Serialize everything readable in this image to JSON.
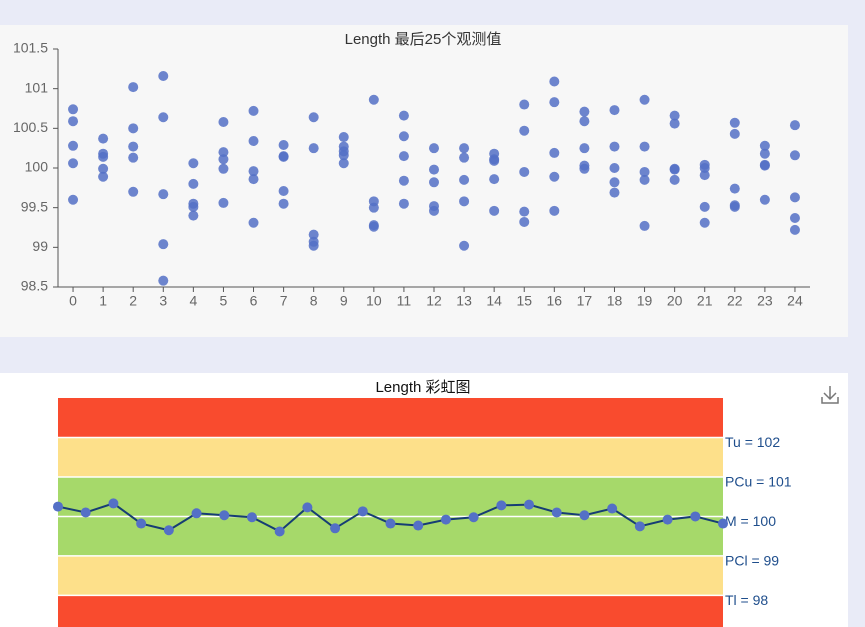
{
  "chart_data": [
    {
      "type": "scatter",
      "title": "Length 最后25个观测值",
      "categories": [
        "0",
        "1",
        "2",
        "3",
        "4",
        "5",
        "6",
        "7",
        "8",
        "9",
        "10",
        "11",
        "12",
        "13",
        "14",
        "15",
        "16",
        "17",
        "18",
        "19",
        "20",
        "21",
        "22",
        "23",
        "24"
      ],
      "color": "#5470c6",
      "values": [
        [
          100.74,
          100.59,
          100.28,
          100.06,
          99.6
        ],
        [
          100.37,
          100.18,
          100.14,
          99.99,
          99.89
        ],
        [
          101.02,
          100.5,
          100.27,
          100.13,
          99.7
        ],
        [
          101.16,
          100.64,
          99.67,
          99.04,
          98.58
        ],
        [
          100.06,
          99.8,
          99.55,
          99.51,
          99.4
        ],
        [
          100.58,
          100.2,
          100.11,
          99.99,
          99.56
        ],
        [
          100.72,
          100.34,
          99.96,
          99.86,
          99.31
        ],
        [
          100.29,
          100.15,
          100.14,
          99.71,
          99.55
        ],
        [
          100.64,
          100.25,
          99.16,
          99.07,
          99.02
        ],
        [
          100.39,
          100.27,
          100.21,
          100.16,
          100.06
        ],
        [
          100.86,
          99.58,
          99.5,
          99.28,
          99.26
        ],
        [
          100.66,
          100.4,
          100.15,
          99.84,
          99.55
        ],
        [
          100.25,
          99.98,
          99.82,
          99.52,
          99.46
        ],
        [
          100.25,
          100.13,
          99.85,
          99.58,
          99.02
        ],
        [
          100.18,
          100.11,
          100.09,
          99.86,
          99.46
        ],
        [
          100.8,
          100.47,
          99.95,
          99.45,
          99.32
        ],
        [
          101.09,
          100.83,
          100.19,
          99.89,
          99.46
        ],
        [
          100.71,
          100.59,
          100.25,
          100.03,
          99.99
        ],
        [
          100.73,
          100.27,
          100.0,
          99.82,
          99.69
        ],
        [
          100.86,
          100.27,
          99.95,
          99.85,
          99.27
        ],
        [
          100.66,
          100.56,
          99.99,
          99.98,
          99.85
        ],
        [
          100.04,
          100.0,
          99.91,
          99.51,
          99.31
        ],
        [
          100.57,
          100.43,
          99.74,
          99.53,
          99.51
        ],
        [
          100.28,
          100.18,
          100.04,
          100.03,
          99.6
        ],
        [
          100.54,
          100.16,
          99.63,
          99.37,
          99.22
        ]
      ],
      "ylim": [
        98.5,
        101.5
      ],
      "yticks": [
        98.5,
        99,
        99.5,
        100,
        100.5,
        101,
        101.5
      ]
    },
    {
      "type": "rainbow",
      "title": "Length 彩虹图",
      "values": [
        100.25,
        100.1,
        100.33,
        99.82,
        99.65,
        100.08,
        100.03,
        99.98,
        99.62,
        100.23,
        99.7,
        100.13,
        99.82,
        99.77,
        99.92,
        99.98,
        100.28,
        100.3,
        100.1,
        100.03,
        100.2,
        99.75,
        99.92,
        100.0,
        99.82
      ],
      "color": "#163d74",
      "marker_color": "#5470c6",
      "ylim": [
        97.2,
        103
      ],
      "control_lines": [
        {
          "value": 102,
          "label": "Tu = 102"
        },
        {
          "value": 101,
          "label": "PCu = 101"
        },
        {
          "value": 100,
          "label": "M = 100"
        },
        {
          "value": 99,
          "label": "PCl = 99"
        },
        {
          "value": 98,
          "label": "Tl = 98"
        }
      ],
      "band_colors": [
        "#f94b2e",
        "#fde08a",
        "#a6d96a",
        "#a6d96a",
        "#fde08a",
        "#f94b2e"
      ],
      "label_color": "#1f4e8c"
    }
  ]
}
